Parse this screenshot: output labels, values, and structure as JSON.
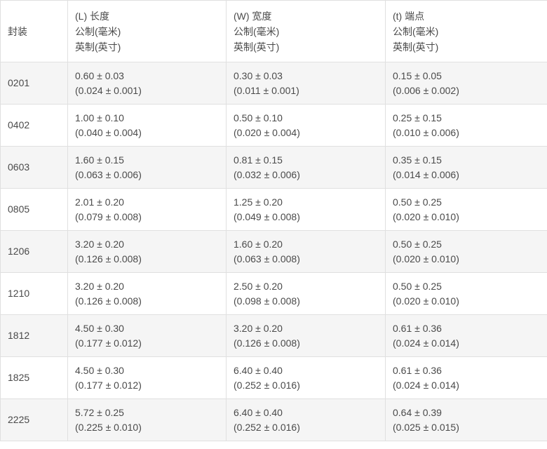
{
  "colors": {
    "stripe_row_bg": "#f5f5f5",
    "plain_row_bg": "#ffffff",
    "border": "#e0e0e0",
    "text": "#4a4a4a"
  },
  "table": {
    "header": {
      "package_label": "封装",
      "length": {
        "title": "(L) 长度",
        "metric_label": "公制(毫米)",
        "imperial_label": "英制(英寸)"
      },
      "width": {
        "title": "(W) 宽度",
        "metric_label": "公制(毫米)",
        "imperial_label": "英制(英寸)"
      },
      "terminal": {
        "title": "(t) 端点",
        "metric_label": "公制(毫米)",
        "imperial_label": "英制(英寸)"
      }
    },
    "rows": [
      {
        "package": "0201",
        "length": {
          "metric": "0.60 ± 0.03",
          "imperial": "(0.024 ± 0.001)"
        },
        "width": {
          "metric": "0.30 ± 0.03",
          "imperial": "(0.011 ± 0.001)"
        },
        "terminal": {
          "metric": "0.15 ± 0.05",
          "imperial": "(0.006 ± 0.002)"
        }
      },
      {
        "package": "0402",
        "length": {
          "metric": "1.00 ± 0.10",
          "imperial": "(0.040 ± 0.004)"
        },
        "width": {
          "metric": "0.50 ± 0.10",
          "imperial": "(0.020 ± 0.004)"
        },
        "terminal": {
          "metric": "0.25 ± 0.15",
          "imperial": "(0.010 ± 0.006)"
        }
      },
      {
        "package": "0603",
        "length": {
          "metric": "1.60 ± 0.15",
          "imperial": "(0.063 ± 0.006)"
        },
        "width": {
          "metric": "0.81 ± 0.15",
          "imperial": "(0.032 ± 0.006)"
        },
        "terminal": {
          "metric": "0.35 ± 0.15",
          "imperial": "(0.014 ± 0.006)"
        }
      },
      {
        "package": "0805",
        "length": {
          "metric": "2.01 ± 0.20",
          "imperial": "(0.079 ± 0.008)"
        },
        "width": {
          "metric": "1.25 ± 0.20",
          "imperial": "(0.049 ± 0.008)"
        },
        "terminal": {
          "metric": "0.50 ± 0.25",
          "imperial": "(0.020 ± 0.010)"
        }
      },
      {
        "package": "1206",
        "length": {
          "metric": "3.20 ± 0.20",
          "imperial": "(0.126 ± 0.008)"
        },
        "width": {
          "metric": "1.60 ± 0.20",
          "imperial": "(0.063 ± 0.008)"
        },
        "terminal": {
          "metric": "0.50 ± 0.25",
          "imperial": "(0.020 ± 0.010)"
        }
      },
      {
        "package": "1210",
        "length": {
          "metric": "3.20 ± 0.20",
          "imperial": "(0.126 ± 0.008)"
        },
        "width": {
          "metric": "2.50 ± 0.20",
          "imperial": "(0.098 ± 0.008)"
        },
        "terminal": {
          "metric": "0.50 ± 0.25",
          "imperial": "(0.020 ± 0.010)"
        }
      },
      {
        "package": "1812",
        "length": {
          "metric": "4.50 ± 0.30",
          "imperial": "(0.177 ± 0.012)"
        },
        "width": {
          "metric": "3.20 ± 0.20",
          "imperial": "(0.126 ± 0.008)"
        },
        "terminal": {
          "metric": "0.61 ± 0.36",
          "imperial": "(0.024 ± 0.014)"
        }
      },
      {
        "package": "1825",
        "length": {
          "metric": "4.50 ± 0.30",
          "imperial": "(0.177 ± 0.012)"
        },
        "width": {
          "metric": "6.40 ± 0.40",
          "imperial": "(0.252 ± 0.016)"
        },
        "terminal": {
          "metric": "0.61 ± 0.36",
          "imperial": "(0.024 ± 0.014)"
        }
      },
      {
        "package": "2225",
        "length": {
          "metric": "5.72 ± 0.25",
          "imperial": "(0.225 ± 0.010)"
        },
        "width": {
          "metric": "6.40 ± 0.40",
          "imperial": "(0.252 ± 0.016)"
        },
        "terminal": {
          "metric": "0.64 ± 0.39",
          "imperial": "(0.025 ± 0.015)"
        }
      }
    ]
  }
}
